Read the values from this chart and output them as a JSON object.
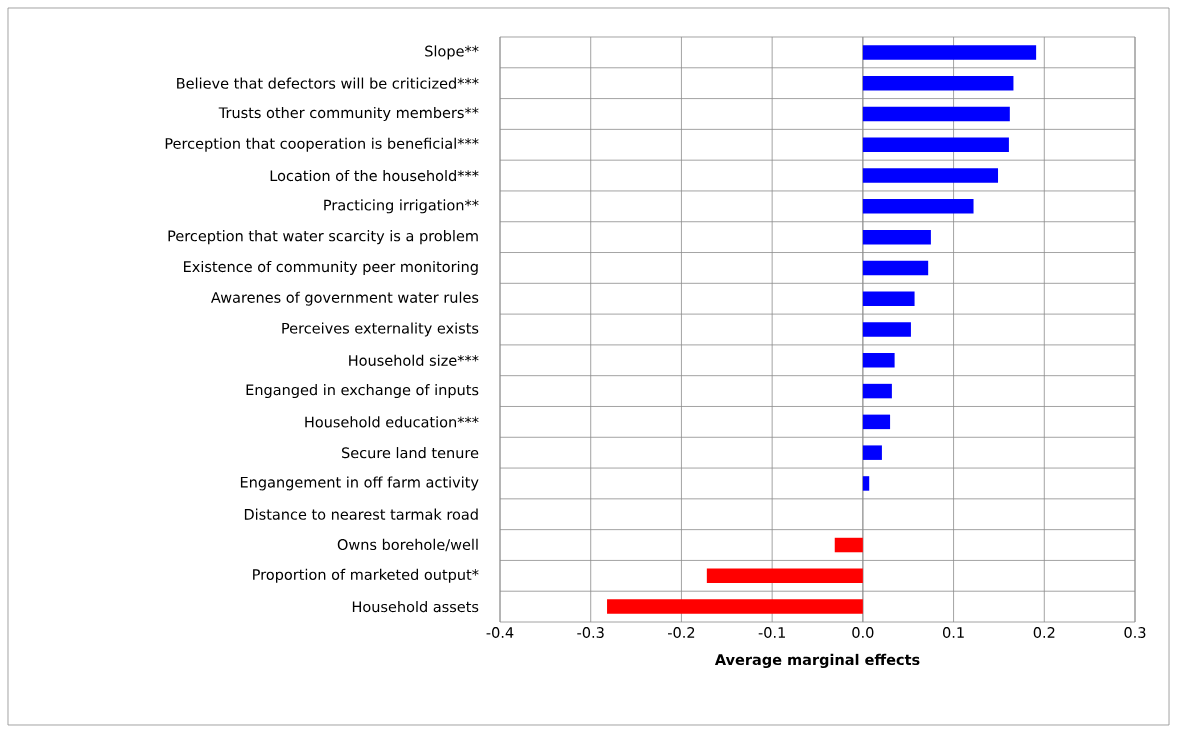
{
  "chart_data": {
    "type": "bar",
    "orientation": "horizontal",
    "xlabel": "Average marginal effects",
    "categories": [
      "Slope**",
      "Believe that defectors will be criticized***",
      "Trusts other community members**",
      "Perception that cooperation is beneficial***",
      "Location of the household***",
      "Practicing irrigation**",
      "Perception that water scarcity is a problem",
      "Existence of community peer monitoring",
      "Awarenes of government water rules",
      "Perceives externality exists",
      "Household size***",
      "Enganged in exchange of inputs",
      "Household education***",
      "Secure land tenure",
      "Engangement in off farm activity",
      "Distance to nearest tarmak road",
      "Owns borehole/well",
      "Proportion of marketed output*",
      "Household assets"
    ],
    "values": [
      0.191,
      0.166,
      0.162,
      0.161,
      0.149,
      0.122,
      0.075,
      0.072,
      0.057,
      0.053,
      0.035,
      0.032,
      0.03,
      0.021,
      0.007,
      0,
      -0.031,
      -0.172,
      -0.282
    ],
    "colors": [
      "#0000ff",
      "#0000ff",
      "#0000ff",
      "#0000ff",
      "#0000ff",
      "#0000ff",
      "#0000ff",
      "#0000ff",
      "#0000ff",
      "#0000ff",
      "#0000ff",
      "#0000ff",
      "#0000ff",
      "#0000ff",
      "#0000ff",
      "#0000ff",
      "#ff0000",
      "#ff0000",
      "#ff0000"
    ],
    "xlim": [
      -0.4,
      0.3
    ],
    "xticks": [
      {
        "value": -0.4,
        "label": "-0.4"
      },
      {
        "value": -0.3,
        "label": "-0.3"
      },
      {
        "value": -0.2,
        "label": "-0.2"
      },
      {
        "value": -0.1,
        "label": "-0.1"
      },
      {
        "value": 0,
        "label": "0.0"
      },
      {
        "value": 0.1,
        "label": "0.1"
      },
      {
        "value": 0.2,
        "label": "0.2"
      },
      {
        "value": 0.3,
        "label": "0.3"
      }
    ],
    "grid": true
  }
}
